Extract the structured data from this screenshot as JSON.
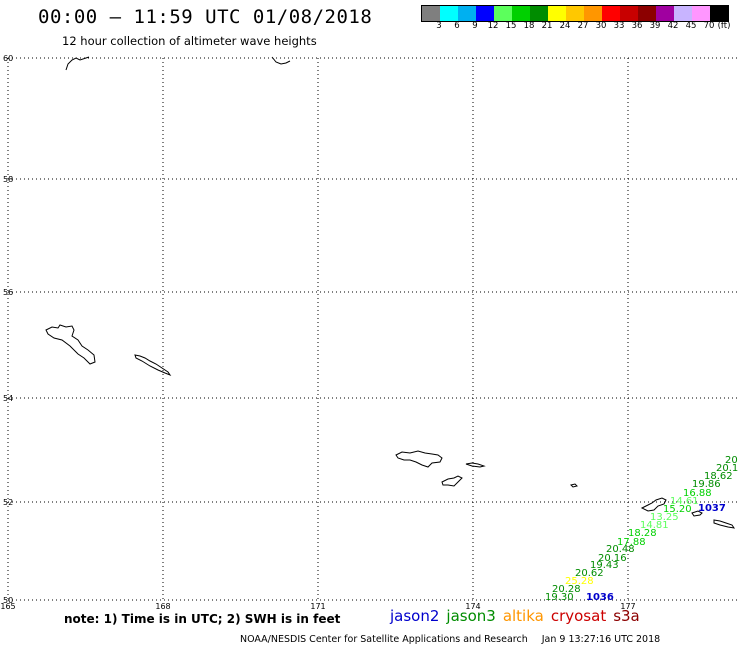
{
  "header": {
    "title": "00:00 – 11:59 UTC 01/08/2018",
    "subtitle": "12 hour collection of altimeter wave heights"
  },
  "colorbar": {
    "unit": "(ft)",
    "swatches": [
      "#7f7f7f",
      "#00ffff",
      "#00b0f0",
      "#0000ff",
      "#5cff5c",
      "#00d000",
      "#008c00",
      "#ffff00",
      "#ffc800",
      "#ff9600",
      "#ff0000",
      "#c80000",
      "#8c0000",
      "#a000a0",
      "#c8b4ff",
      "#ff96ff",
      "#000000"
    ],
    "labels": [
      "3",
      "6",
      "9",
      "12",
      "15",
      "18",
      "21",
      "24",
      "27",
      "30",
      "33",
      "36",
      "39",
      "42",
      "45",
      "70"
    ]
  },
  "map": {
    "lat_labels": [
      "60",
      "58",
      "56",
      "54",
      "52",
      "50"
    ],
    "lon_labels": [
      "165",
      "168",
      "171",
      "174",
      "177"
    ],
    "track_labels": [
      {
        "value": "1036",
        "color": "#0000cc"
      },
      {
        "value": "1037",
        "color": "#0000cc"
      }
    ],
    "measurements": [
      {
        "value": "19.30",
        "color": "#008c00"
      },
      {
        "value": "20.28",
        "color": "#008c00"
      },
      {
        "value": "25.28",
        "color": "#ffff00"
      },
      {
        "value": "20.62",
        "color": "#008c00"
      },
      {
        "value": "19.43",
        "color": "#008c00"
      },
      {
        "value": "20.16",
        "color": "#008c00"
      },
      {
        "value": "20.48",
        "color": "#008c00"
      },
      {
        "value": "17.88",
        "color": "#00d000"
      },
      {
        "value": "18.28",
        "color": "#00d000"
      },
      {
        "value": "14.81",
        "color": "#5cff5c"
      },
      {
        "value": "13.25",
        "color": "#5cff5c"
      },
      {
        "value": "15.20",
        "color": "#00d000"
      },
      {
        "value": "14.61",
        "color": "#5cff5c"
      },
      {
        "value": "16.88",
        "color": "#00d000"
      },
      {
        "value": "19.86",
        "color": "#008c00"
      },
      {
        "value": "18.62",
        "color": "#008c00"
      },
      {
        "value": "20.1",
        "color": "#008c00"
      },
      {
        "value": "20",
        "color": "#008c00"
      }
    ]
  },
  "footer": {
    "note": "note: 1) Time is in UTC; 2) SWH is in feet",
    "satellites": [
      {
        "name": "jason2",
        "color": "#0000cc"
      },
      {
        "name": "jason3",
        "color": "#008c00"
      },
      {
        "name": "altika",
        "color": "#ff9600"
      },
      {
        "name": "cryosat",
        "color": "#cc0000"
      },
      {
        "name": "s3a",
        "color": "#8c0000"
      }
    ],
    "credit": "NOAA/NESDIS Center for Satellite Applications and Research",
    "timestamp": "Jan  9 13:27:16 UTC 2018"
  }
}
